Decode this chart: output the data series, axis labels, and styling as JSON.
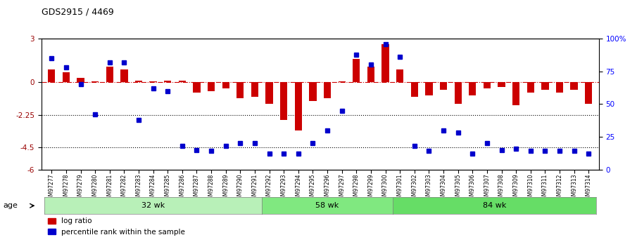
{
  "title": "GDS2915 / 4469",
  "samples": [
    "GSM97277",
    "GSM97278",
    "GSM97279",
    "GSM97280",
    "GSM97281",
    "GSM97282",
    "GSM97283",
    "GSM97284",
    "GSM97285",
    "GSM97286",
    "GSM97287",
    "GSM97288",
    "GSM97289",
    "GSM97290",
    "GSM97291",
    "GSM97292",
    "GSM97293",
    "GSM97294",
    "GSM97295",
    "GSM97296",
    "GSM97297",
    "GSM97298",
    "GSM97299",
    "GSM97300",
    "GSM97301",
    "GSM97302",
    "GSM97303",
    "GSM97304",
    "GSM97305",
    "GSM97306",
    "GSM97307",
    "GSM97308",
    "GSM97309",
    "GSM97310",
    "GSM97311",
    "GSM97312",
    "GSM97313",
    "GSM97314"
  ],
  "log_ratio": [
    0.9,
    0.7,
    0.3,
    0.05,
    1.1,
    0.9,
    0.1,
    0.05,
    0.1,
    0.1,
    -0.7,
    -0.6,
    -0.4,
    -1.1,
    -1.0,
    -1.5,
    -2.6,
    -3.3,
    -1.3,
    -1.1,
    0.05,
    1.6,
    1.1,
    2.6,
    0.9,
    -1.0,
    -0.9,
    -0.5,
    -1.5,
    -0.9,
    -0.4,
    -0.3,
    -1.6,
    -0.7,
    -0.5,
    -0.7,
    -0.5,
    -1.5
  ],
  "percentile": [
    85,
    78,
    65,
    42,
    82,
    82,
    38,
    62,
    60,
    18,
    15,
    14,
    18,
    20,
    20,
    12,
    12,
    12,
    20,
    30,
    45,
    88,
    80,
    96,
    86,
    18,
    14,
    30,
    28,
    12,
    20,
    15,
    16,
    14,
    14,
    14,
    14,
    12
  ],
  "groups": [
    {
      "label": "32 wk",
      "start": 0,
      "end": 15
    },
    {
      "label": "58 wk",
      "start": 15,
      "end": 24
    },
    {
      "label": "84 wk",
      "start": 24,
      "end": 38
    }
  ],
  "ylim_left": [
    -6,
    3
  ],
  "ylim_right": [
    0,
    100
  ],
  "yticks_left": [
    3,
    0,
    -2.25,
    -4.5,
    -6
  ],
  "ytick_labels_left": [
    "3",
    "0",
    "-2.25",
    "-4.5",
    "-6"
  ],
  "yticks_right": [
    100,
    75,
    50,
    25,
    0
  ],
  "ytick_labels_right": [
    "100%",
    "75",
    "50",
    "25",
    "0"
  ],
  "hlines": [
    -2.25,
    -4.5
  ],
  "bar_color": "#cc0000",
  "dot_color": "#0000cc",
  "dash_color": "#cc0000",
  "group_colors": [
    "#b8f0b8",
    "#80e880",
    "#66dd66"
  ],
  "legend_bar_label": "log ratio",
  "legend_dot_label": "percentile rank within the sample",
  "age_label": "age"
}
